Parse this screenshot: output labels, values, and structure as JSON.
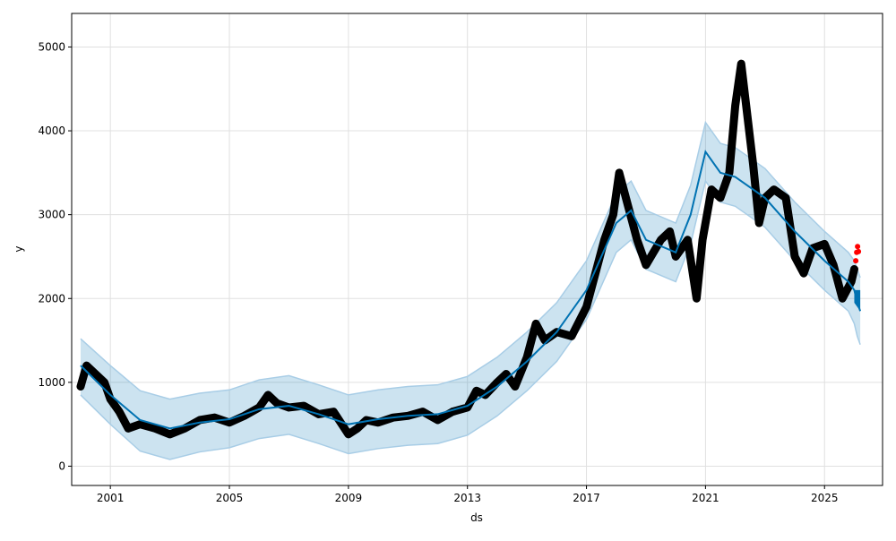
{
  "chart_data": {
    "type": "line",
    "title": "",
    "xlabel": "ds",
    "ylabel": "y",
    "xlim": [
      1999.7,
      2026.95
    ],
    "ylim": [
      -230,
      5400
    ],
    "xticks": [
      2001,
      2005,
      2009,
      2013,
      2017,
      2021,
      2025
    ],
    "xtick_labels": [
      "2001",
      "2005",
      "2009",
      "2013",
      "2017",
      "2021",
      "2025"
    ],
    "yticks": [
      0,
      1000,
      2000,
      3000,
      4000,
      5000
    ],
    "ytick_labels": [
      "0",
      "1000",
      "2000",
      "3000",
      "4000",
      "5000"
    ],
    "grid": true,
    "colors": {
      "actual": "#000000",
      "forecast": "#0072B2",
      "band": "#0072B2",
      "test": "#ff0000"
    },
    "series": [
      {
        "name": "actual",
        "type": "scatter",
        "x": [
          2000.0,
          2000.2,
          2000.5,
          2000.8,
          2001.0,
          2001.3,
          2001.6,
          2002.0,
          2002.5,
          2003.0,
          2003.5,
          2004.0,
          2004.5,
          2005.0,
          2005.5,
          2006.0,
          2006.3,
          2006.6,
          2007.0,
          2007.5,
          2008.0,
          2008.5,
          2009.0,
          2009.3,
          2009.6,
          2010.0,
          2010.5,
          2011.0,
          2011.5,
          2012.0,
          2012.5,
          2013.0,
          2013.3,
          2013.6,
          2014.0,
          2014.3,
          2014.6,
          2015.0,
          2015.3,
          2015.6,
          2016.0,
          2016.5,
          2017.0,
          2017.3,
          2017.6,
          2017.9,
          2018.1,
          2018.4,
          2018.7,
          2019.0,
          2019.5,
          2019.8,
          2020.0,
          2020.4,
          2020.7,
          2020.9,
          2021.2,
          2021.5,
          2021.8,
          2022.0,
          2022.2,
          2022.4,
          2022.6,
          2022.8,
          2023.0,
          2023.3,
          2023.7,
          2024.0,
          2024.3,
          2024.6,
          2025.0,
          2025.3,
          2025.6,
          2025.9,
          2026.0
        ],
        "y": [
          950,
          1200,
          1100,
          1000,
          800,
          650,
          450,
          500,
          450,
          380,
          450,
          550,
          580,
          520,
          600,
          700,
          850,
          750,
          700,
          720,
          620,
          650,
          380,
          450,
          550,
          520,
          580,
          600,
          650,
          550,
          650,
          700,
          900,
          850,
          1000,
          1100,
          950,
          1300,
          1700,
          1500,
          1600,
          1550,
          1900,
          2300,
          2700,
          3000,
          3500,
          3100,
          2700,
          2400,
          2700,
          2800,
          2500,
          2700,
          2000,
          2700,
          3300,
          3200,
          3500,
          4300,
          4800,
          4200,
          3600,
          2900,
          3200,
          3300,
          3200,
          2500,
          2300,
          2600,
          2650,
          2400,
          2000,
          2200,
          2350
        ]
      },
      {
        "name": "test",
        "type": "scatter",
        "x": [
          2026.05,
          2026.08,
          2026.11,
          2026.14
        ],
        "y": [
          2450,
          2550,
          2620,
          2560
        ]
      },
      {
        "name": "yhat",
        "type": "line",
        "x": [
          2000,
          2001,
          2002,
          2003,
          2004,
          2005,
          2006,
          2007,
          2008,
          2009,
          2010,
          2011,
          2012,
          2013,
          2014,
          2015,
          2016,
          2017,
          2018,
          2018.5,
          2019,
          2020,
          2020.5,
          2021,
          2021.5,
          2022,
          2023,
          2024,
          2025,
          2025.8,
          2026.0,
          2026.1,
          2026.2
        ],
        "y": [
          1200,
          850,
          550,
          450,
          520,
          560,
          680,
          720,
          620,
          500,
          560,
          600,
          620,
          720,
          950,
          1250,
          1600,
          2100,
          2900,
          3050,
          2700,
          2550,
          3000,
          3750,
          3500,
          3450,
          3200,
          2800,
          2450,
          2200,
          2100,
          1950,
          1850
        ]
      },
      {
        "name": "yhat_lower",
        "type": "band_lower",
        "x": [
          2000,
          2001,
          2002,
          2003,
          2004,
          2005,
          2006,
          2007,
          2008,
          2009,
          2010,
          2011,
          2012,
          2013,
          2014,
          2015,
          2016,
          2017,
          2018,
          2018.5,
          2019,
          2020,
          2020.5,
          2021,
          2021.5,
          2022,
          2023,
          2024,
          2025,
          2025.8,
          2026.0,
          2026.1,
          2026.2
        ],
        "y": [
          850,
          500,
          180,
          80,
          170,
          220,
          330,
          380,
          270,
          150,
          210,
          250,
          270,
          370,
          600,
          900,
          1250,
          1750,
          2550,
          2700,
          2350,
          2200,
          2650,
          3400,
          3150,
          3100,
          2850,
          2450,
          2100,
          1850,
          1700,
          1550,
          1450
        ]
      },
      {
        "name": "yhat_upper",
        "type": "band_upper",
        "x": [
          2000,
          2001,
          2002,
          2003,
          2004,
          2005,
          2006,
          2007,
          2008,
          2009,
          2010,
          2011,
          2012,
          2013,
          2014,
          2015,
          2016,
          2017,
          2018,
          2018.5,
          2019,
          2020,
          2020.5,
          2021,
          2021.5,
          2022,
          2023,
          2024,
          2025,
          2025.8,
          2026.0,
          2026.1,
          2026.2
        ],
        "y": [
          1520,
          1200,
          900,
          800,
          870,
          910,
          1030,
          1080,
          970,
          850,
          910,
          950,
          970,
          1070,
          1300,
          1600,
          1950,
          2450,
          3250,
          3400,
          3050,
          2900,
          3350,
          4100,
          3850,
          3800,
          3550,
          3150,
          2800,
          2550,
          2450,
          2350,
          2250
        ]
      }
    ]
  }
}
